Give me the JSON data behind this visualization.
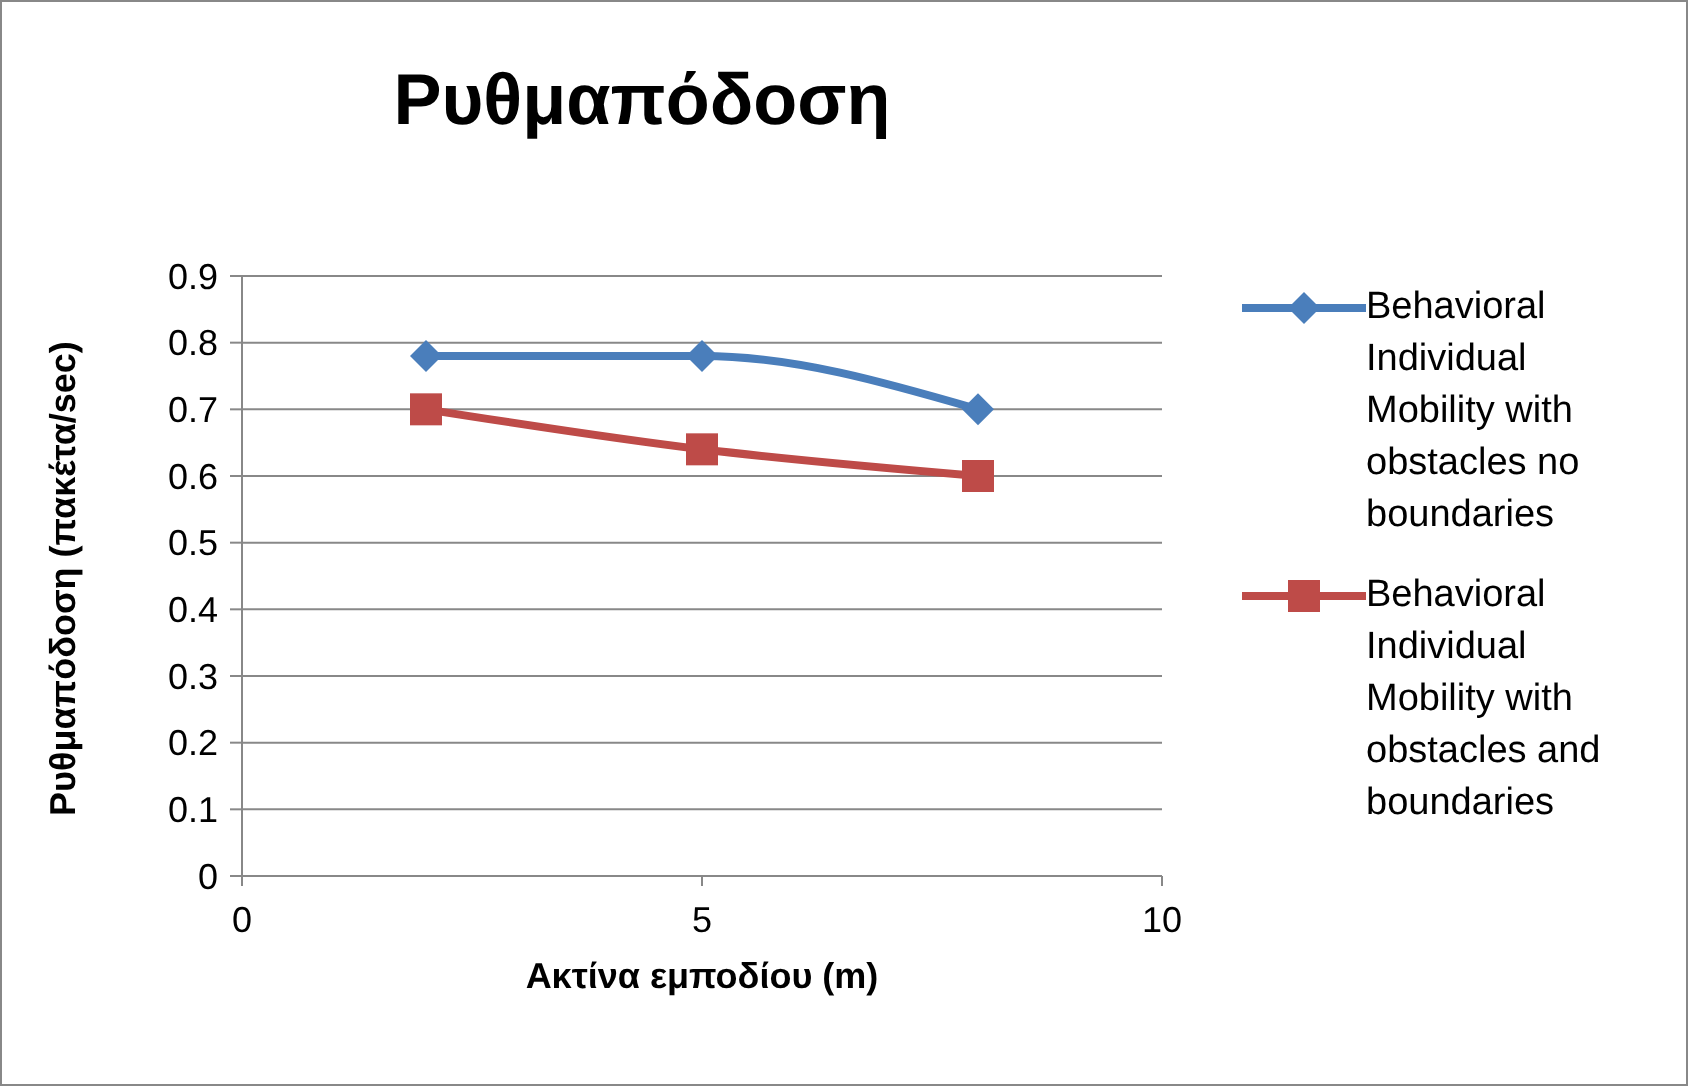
{
  "chart_data": {
    "type": "line",
    "title": "Ρυθμαπόδοση",
    "xlabel": "Ακτίνα εμποδίου (m)",
    "ylabel": "Ρυθμαπόδοση (πακέτα/sec)",
    "x": [
      2,
      5,
      8
    ],
    "series": [
      {
        "name": "Behavioral Individual Mobility with obstacles no boundaries",
        "color": "#4a7ebb",
        "marker": "diamond",
        "values": [
          0.78,
          0.78,
          0.7
        ]
      },
      {
        "name": "Behavioral Individual Mobility with obstacles and boundaries",
        "color": "#be4b48",
        "marker": "square",
        "values": [
          0.7,
          0.64,
          0.6
        ]
      }
    ],
    "xlim": [
      0,
      10
    ],
    "xticks": [
      0,
      5,
      10
    ],
    "ylim": [
      0,
      0.9
    ],
    "yticks": [
      0,
      0.1,
      0.2,
      0.3,
      0.4,
      0.5,
      0.6,
      0.7,
      0.8,
      0.9
    ],
    "grid": "y",
    "legend": "right",
    "line_style": "solid"
  }
}
